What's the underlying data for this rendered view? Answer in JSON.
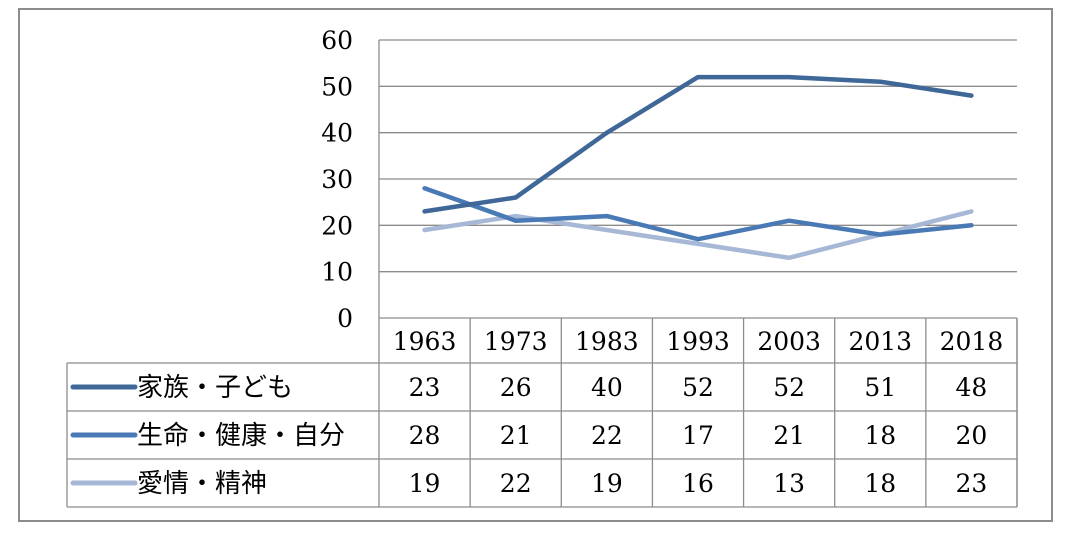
{
  "chart_data": {
    "type": "line",
    "title": "",
    "xlabel": "",
    "ylabel": "",
    "ylim": [
      0,
      60
    ],
    "y_ticks": [
      "0",
      "10",
      "20",
      "30",
      "40",
      "50",
      "60"
    ],
    "categories": [
      "1963",
      "1973",
      "1983",
      "1993",
      "2003",
      "2013",
      "2018"
    ],
    "grid": true,
    "legend": "data-table-left",
    "series": [
      {
        "name": "家族・子ども",
        "color": "#3f6797",
        "values": [
          23,
          26,
          40,
          52,
          52,
          51,
          48
        ]
      },
      {
        "name": "生命・健康・自分",
        "color": "#4a7ab6",
        "values": [
          28,
          21,
          22,
          17,
          21,
          18,
          20
        ]
      },
      {
        "name": "愛情・精神",
        "color": "#a6b8d6",
        "values": [
          19,
          22,
          19,
          16,
          13,
          18,
          23
        ]
      }
    ]
  }
}
